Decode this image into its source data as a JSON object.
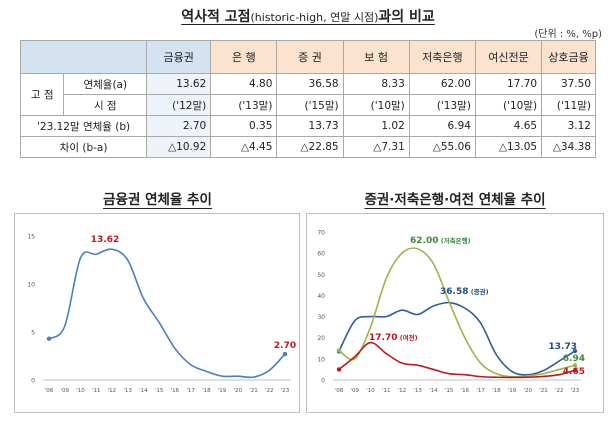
{
  "title": {
    "main": "역사적 고점",
    "sub": "(historic-high, 연말 시점)",
    "tail": "과의 비교"
  },
  "unit": "(단위 : %, %p)",
  "table": {
    "columns": [
      "금융권",
      "은 행",
      "증 권",
      "보 험",
      "저축은행",
      "여신전문",
      "상호금융"
    ],
    "group_label": "고 점",
    "rows": [
      {
        "label": "연체율(a)",
        "values": [
          "13.62",
          "4.80",
          "36.58",
          "8.33",
          "62.00",
          "17.70",
          "37.50"
        ]
      },
      {
        "label": "시 점",
        "values": [
          "('12말)",
          "('13말)",
          "('15말)",
          "('10말)",
          "('13말)",
          "('10말)",
          "('11말)"
        ]
      },
      {
        "label": "'23.12말 연체율 (b)",
        "values": [
          "2.70",
          "0.35",
          "13.73",
          "1.02",
          "6.94",
          "4.65",
          "3.12"
        ]
      },
      {
        "label": "차이 (b-a)",
        "values": [
          "△10.92",
          "△4.45",
          "△22.85",
          "△7.31",
          "△55.06",
          "△13.05",
          "△34.38"
        ]
      }
    ]
  },
  "left_title": "금융권 연체율 추이",
  "right_title": "증권·저축은행·여전 연체율 추이",
  "chart_data": [
    {
      "type": "line",
      "title": "금융권 연체율 추이",
      "x": [
        "'08",
        "'09",
        "'10",
        "'11",
        "'12",
        "'13",
        "'14",
        "'15",
        "'16",
        "'17",
        "'18",
        "'19",
        "'20",
        "'21",
        "'22",
        "'23"
      ],
      "ylim": [
        0,
        15
      ],
      "yticks": [
        "0",
        "5",
        "10",
        "15"
      ],
      "series": [
        {
          "name": "금융권",
          "color": "#4a7ebf",
          "values": [
            4.3,
            5.6,
            12.7,
            13.1,
            13.62,
            12.5,
            8.5,
            6.0,
            3.3,
            1.6,
            0.9,
            0.4,
            0.4,
            0.3,
            1.0,
            2.7
          ]
        }
      ],
      "annotations": [
        {
          "text": "13.62",
          "x": "'12",
          "color": "#c0171c"
        },
        {
          "text": "2.70",
          "x": "'23",
          "color": "#c0171c"
        }
      ]
    },
    {
      "type": "line",
      "title": "증권·저축은행·여전 연체율 추이",
      "x": [
        "'08",
        "'09",
        "'10",
        "'11",
        "'12",
        "'13",
        "'14",
        "'15",
        "'16",
        "'17",
        "'18",
        "'19",
        "'20",
        "'21",
        "'22",
        "'23"
      ],
      "ylim": [
        0,
        70
      ],
      "yticks": [
        "0",
        "10",
        "20",
        "30",
        "40",
        "50",
        "60",
        "70"
      ],
      "series": [
        {
          "name": "증권",
          "color": "#2e5e9e",
          "values": [
            13.5,
            28,
            30,
            30,
            33,
            31,
            35,
            36.58,
            34,
            27,
            12,
            4,
            2.5,
            4.5,
            9,
            13.73
          ]
        },
        {
          "name": "저축은행",
          "color": "#9cb54a",
          "values": [
            14,
            10,
            25,
            48,
            60,
            62.0,
            55,
            37,
            20,
            8,
            3,
            1.5,
            2,
            3,
            5,
            6.94
          ]
        },
        {
          "name": "여전",
          "color": "#c0171c",
          "values": [
            5,
            11,
            17.7,
            12.5,
            8,
            7,
            5,
            3,
            2.5,
            1.6,
            1.3,
            1.2,
            1.3,
            1.7,
            2.5,
            4.65
          ]
        }
      ],
      "annotations": [
        {
          "text": "62.00",
          "note": "(저축은행)",
          "color": "#3a8a3a"
        },
        {
          "text": "36.58",
          "note": "(증권)",
          "color": "#1f4e8c"
        },
        {
          "text": "17.70",
          "note": "(여전)",
          "color": "#c0171c"
        },
        {
          "text": "13.73",
          "color": "#1f4e8c"
        },
        {
          "text": "6.94",
          "color": "#3a8a3a"
        },
        {
          "text": "4.65",
          "color": "#c0171c"
        }
      ]
    }
  ]
}
